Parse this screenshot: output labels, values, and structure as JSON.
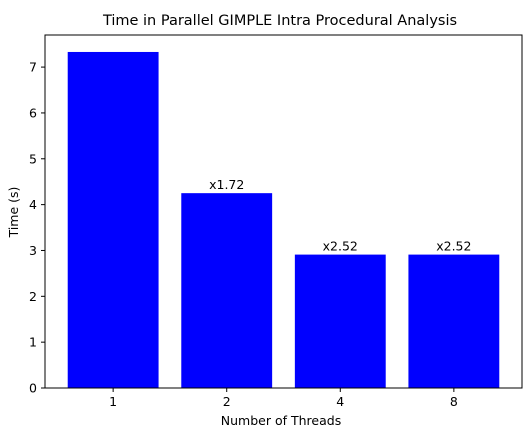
{
  "chart_data": {
    "type": "bar",
    "title": "Time in Parallel GIMPLE Intra Procedural Analysis",
    "xlabel": "Number of Threads",
    "ylabel": "Time (s)",
    "categories": [
      "1",
      "2",
      "4",
      "8"
    ],
    "values": [
      7.33,
      4.25,
      2.91,
      2.91
    ],
    "data_labels": [
      "",
      "x1.72",
      "x2.52",
      "x2.52"
    ],
    "ylim": [
      0,
      7.7
    ],
    "yticks": [
      0,
      1,
      2,
      3,
      4,
      5,
      6,
      7
    ],
    "bar_color": "#0000ff",
    "grid": false,
    "legend": "none"
  }
}
